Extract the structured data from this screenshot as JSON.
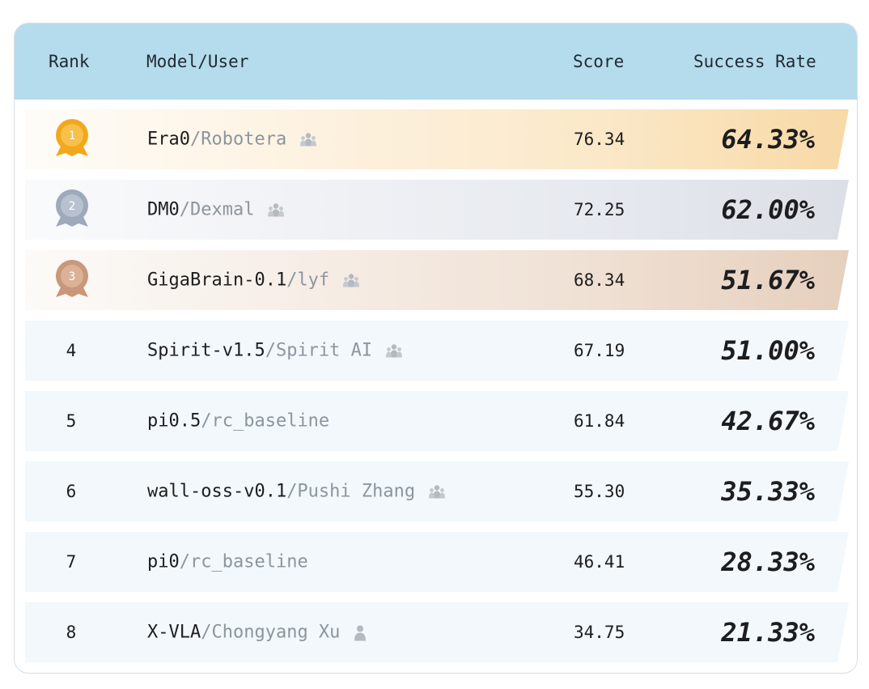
{
  "table": {
    "header": [
      "Rank",
      "Model/User",
      "Score",
      "Success Rate"
    ],
    "rows": [
      {
        "rank": "1",
        "model": "Era0",
        "user": "/Robotera",
        "score": "76.34",
        "success_rate": "64.33%"
      },
      {
        "rank": "2",
        "model": "DM0",
        "user": "/Dexmal",
        "score": "72.25",
        "success_rate": "62.00%"
      },
      {
        "rank": "3",
        "model": "GigaBrain-0.1",
        "user": "/lyf",
        "score": "68.34",
        "success_rate": "51.67%"
      },
      {
        "rank": "4",
        "model": "Spirit-v1.5",
        "user": "/Spirit AI",
        "score": "67.19",
        "success_rate": "51.00%"
      },
      {
        "rank": "5",
        "model": "pi0.5",
        "user": "/rc_baseline",
        "score": "61.84",
        "success_rate": "42.67%"
      },
      {
        "rank": "6",
        "model": "wall-oss-v0.1",
        "user": "/Pushi Zhang",
        "score": "55.30",
        "success_rate": "35.33%"
      },
      {
        "rank": "7",
        "model": "pi0",
        "user": "/rc_baseline",
        "score": "46.41",
        "success_rate": "28.33%"
      },
      {
        "rank": "8",
        "model": "X-VLA",
        "user": "/Chongyang Xu",
        "score": "34.75",
        "success_rate": "21.33%"
      }
    ]
  }
}
